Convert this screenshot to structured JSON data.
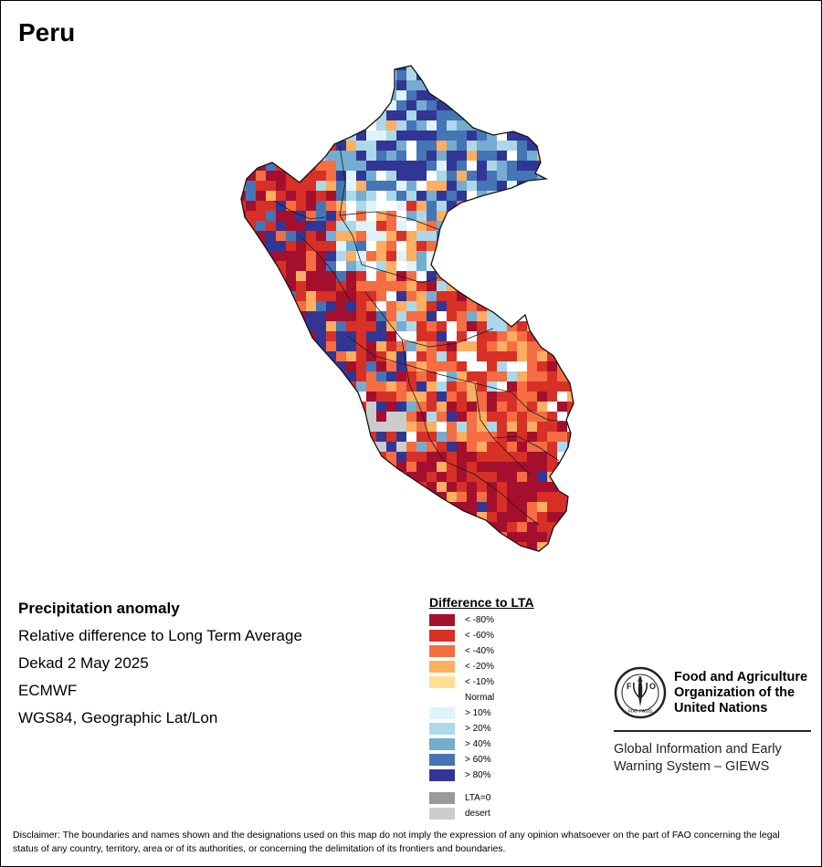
{
  "title": "Peru",
  "info": {
    "line1": "Precipitation anomaly",
    "line2": "Relative difference to Long Term Average",
    "line3": "Dekad 2 May 2025",
    "line4": "ECMWF",
    "line5": "WGS84, Geographic Lat/Lon"
  },
  "legend": {
    "title": "Difference to LTA",
    "classes": [
      {
        "label": "< -80%",
        "color": "#a50f2e"
      },
      {
        "label": "< -60%",
        "color": "#d73027"
      },
      {
        "label": "< -40%",
        "color": "#f46d43"
      },
      {
        "label": "< -20%",
        "color": "#fdae61"
      },
      {
        "label": "< -10%",
        "color": "#fee090"
      },
      {
        "label": "Normal",
        "color": "#ffffff"
      },
      {
        "label": "> 10%",
        "color": "#e0f3f8"
      },
      {
        "label": "> 20%",
        "color": "#abd9e9"
      },
      {
        "label": "> 40%",
        "color": "#74add1"
      },
      {
        "label": "> 60%",
        "color": "#4575b4"
      },
      {
        "label": "> 80%",
        "color": "#313695"
      }
    ],
    "extra": [
      {
        "label": "LTA=0",
        "color": "#9a9a9a"
      },
      {
        "label": "desert",
        "color": "#cccccc"
      }
    ]
  },
  "fao": {
    "logo_text": "FAO",
    "logo_motto": "FIAT PANIS",
    "name_line1": "Food and Agriculture",
    "name_line2": "Organization of the",
    "name_line3": "United Nations",
    "system_line1": "Global Information and Early",
    "system_line2": "Warning System – GIEWS"
  },
  "disclaimer": "Disclaimer: The boundaries and names shown and the designations used on this map do not imply the expression of any opinion whatsoever on the part of FAO concerning the legal status of any country, territory, area or of its authorities, or concerning the delimitation of its frontiers and boundaries."
}
